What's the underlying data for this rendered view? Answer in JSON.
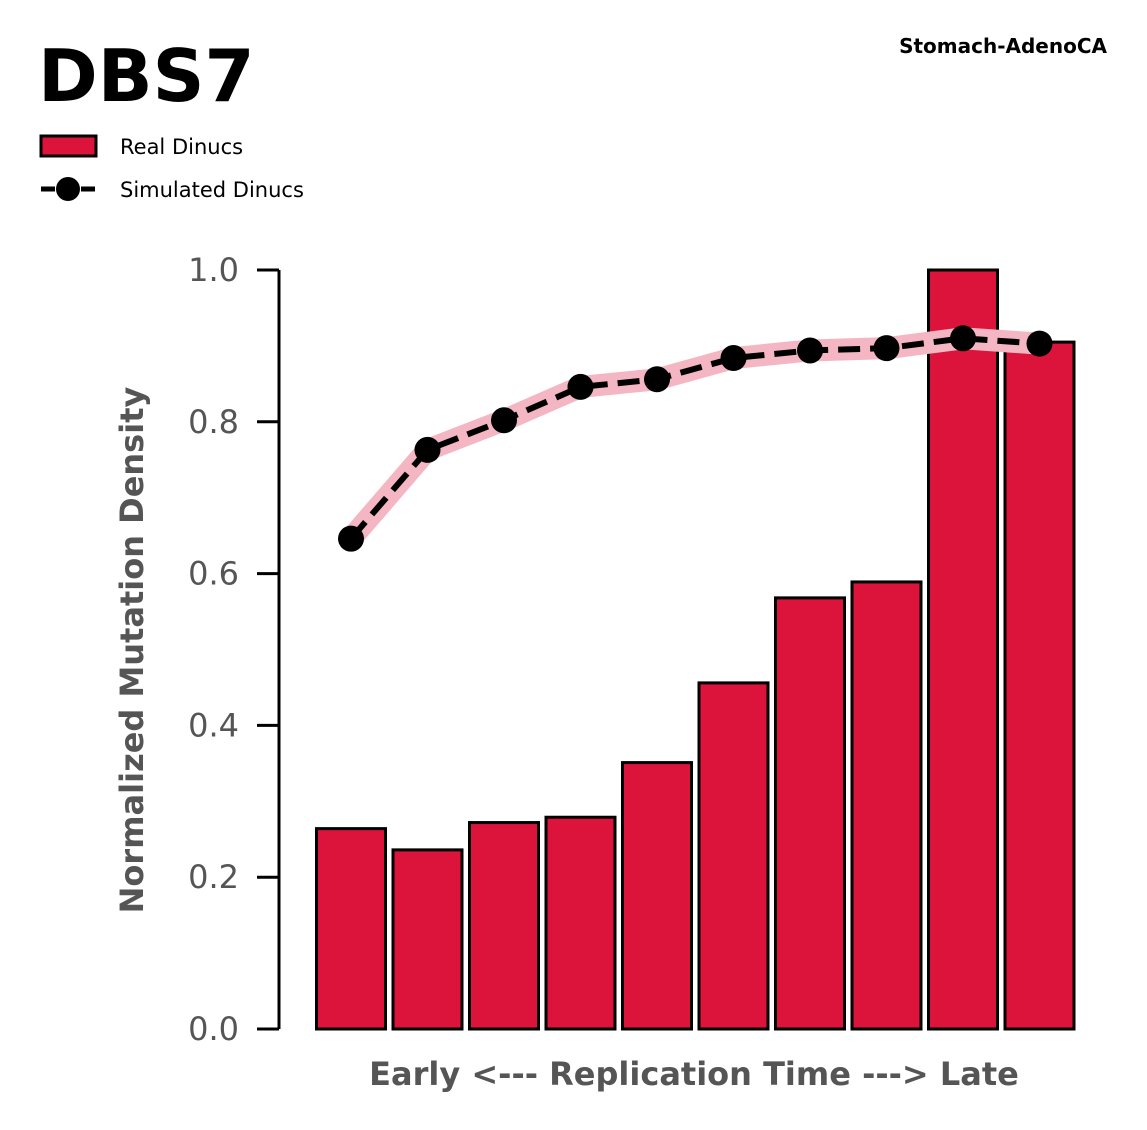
{
  "chart_data": {
    "type": "bar",
    "title": "DBS7",
    "subtitle": "Stomach-AdenoCA",
    "xlabel": "Early <--- Replication Time ---> Late",
    "ylabel": "Normalized Mutation Density",
    "ylim": [
      0,
      1.0
    ],
    "yticks": [
      0.0,
      0.2,
      0.4,
      0.6,
      0.8,
      1.0
    ],
    "ytick_labels": [
      "0.0",
      "0.2",
      "0.4",
      "0.6",
      "0.8",
      "1.0"
    ],
    "grid": false,
    "legend_position": "top-left",
    "series": [
      {
        "name": "Real Dinucs",
        "type": "bar",
        "color": "#dc143c",
        "values": [
          0.264,
          0.236,
          0.272,
          0.279,
          0.351,
          0.456,
          0.568,
          0.589,
          1.0,
          0.905
        ]
      },
      {
        "name": "Simulated Dinucs",
        "type": "line",
        "color": "#000000",
        "band_color": "#f4b6c2",
        "values": [
          0.646,
          0.763,
          0.802,
          0.846,
          0.856,
          0.884,
          0.894,
          0.897,
          0.91,
          0.903
        ]
      }
    ]
  }
}
